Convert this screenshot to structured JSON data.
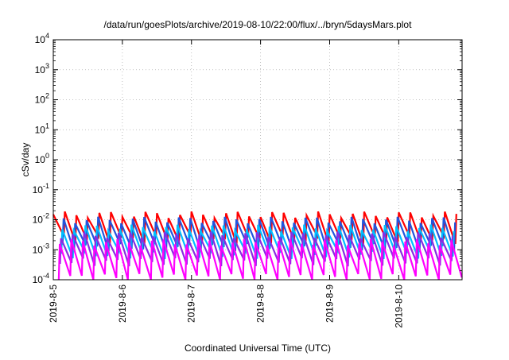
{
  "chart_data": {
    "type": "line",
    "title": "/data/run/goesPlots/archive/2019-08-10/22:00/flux/../bryn/5daysMars.plot",
    "xlabel": "Coordinated Universal Time (UTC)",
    "ylabel": "cSv/day",
    "x_range": [
      "2019-08-05",
      "2019-08-10 22:00"
    ],
    "x_ticks": [
      "2019-8-5",
      "2019-8-6",
      "2019-8-7",
      "2019-8-8",
      "2019-8-9",
      "2019-8-10"
    ],
    "y_scale": "log",
    "ylim": [
      0.0001,
      10000
    ],
    "y_ticks": [
      {
        "base": "10",
        "exp": "-4"
      },
      {
        "base": "10",
        "exp": "-3"
      },
      {
        "base": "10",
        "exp": "-2"
      },
      {
        "base": "10",
        "exp": "-1"
      },
      {
        "base": "10",
        "exp": "0"
      },
      {
        "base": "10",
        "exp": "1"
      },
      {
        "base": "10",
        "exp": "2"
      },
      {
        "base": "10",
        "exp": "3"
      },
      {
        "base": "10",
        "exp": "4"
      }
    ],
    "grid": true,
    "sawtooth_period_hours": 4,
    "series": [
      {
        "color": "#ff0000",
        "peak": 0.015,
        "trough": 0.0022
      },
      {
        "color": "#2255dd",
        "peak": 0.01,
        "trough": 0.0012
      },
      {
        "color": "#00bfff",
        "peak": 0.0055,
        "trough": 0.0007
      },
      {
        "color": "#8a2be2",
        "peak": 0.0032,
        "trough": 0.0004
      },
      {
        "color": "#ff00ff",
        "peak": 0.0018,
        "trough": 0.00012
      }
    ]
  }
}
